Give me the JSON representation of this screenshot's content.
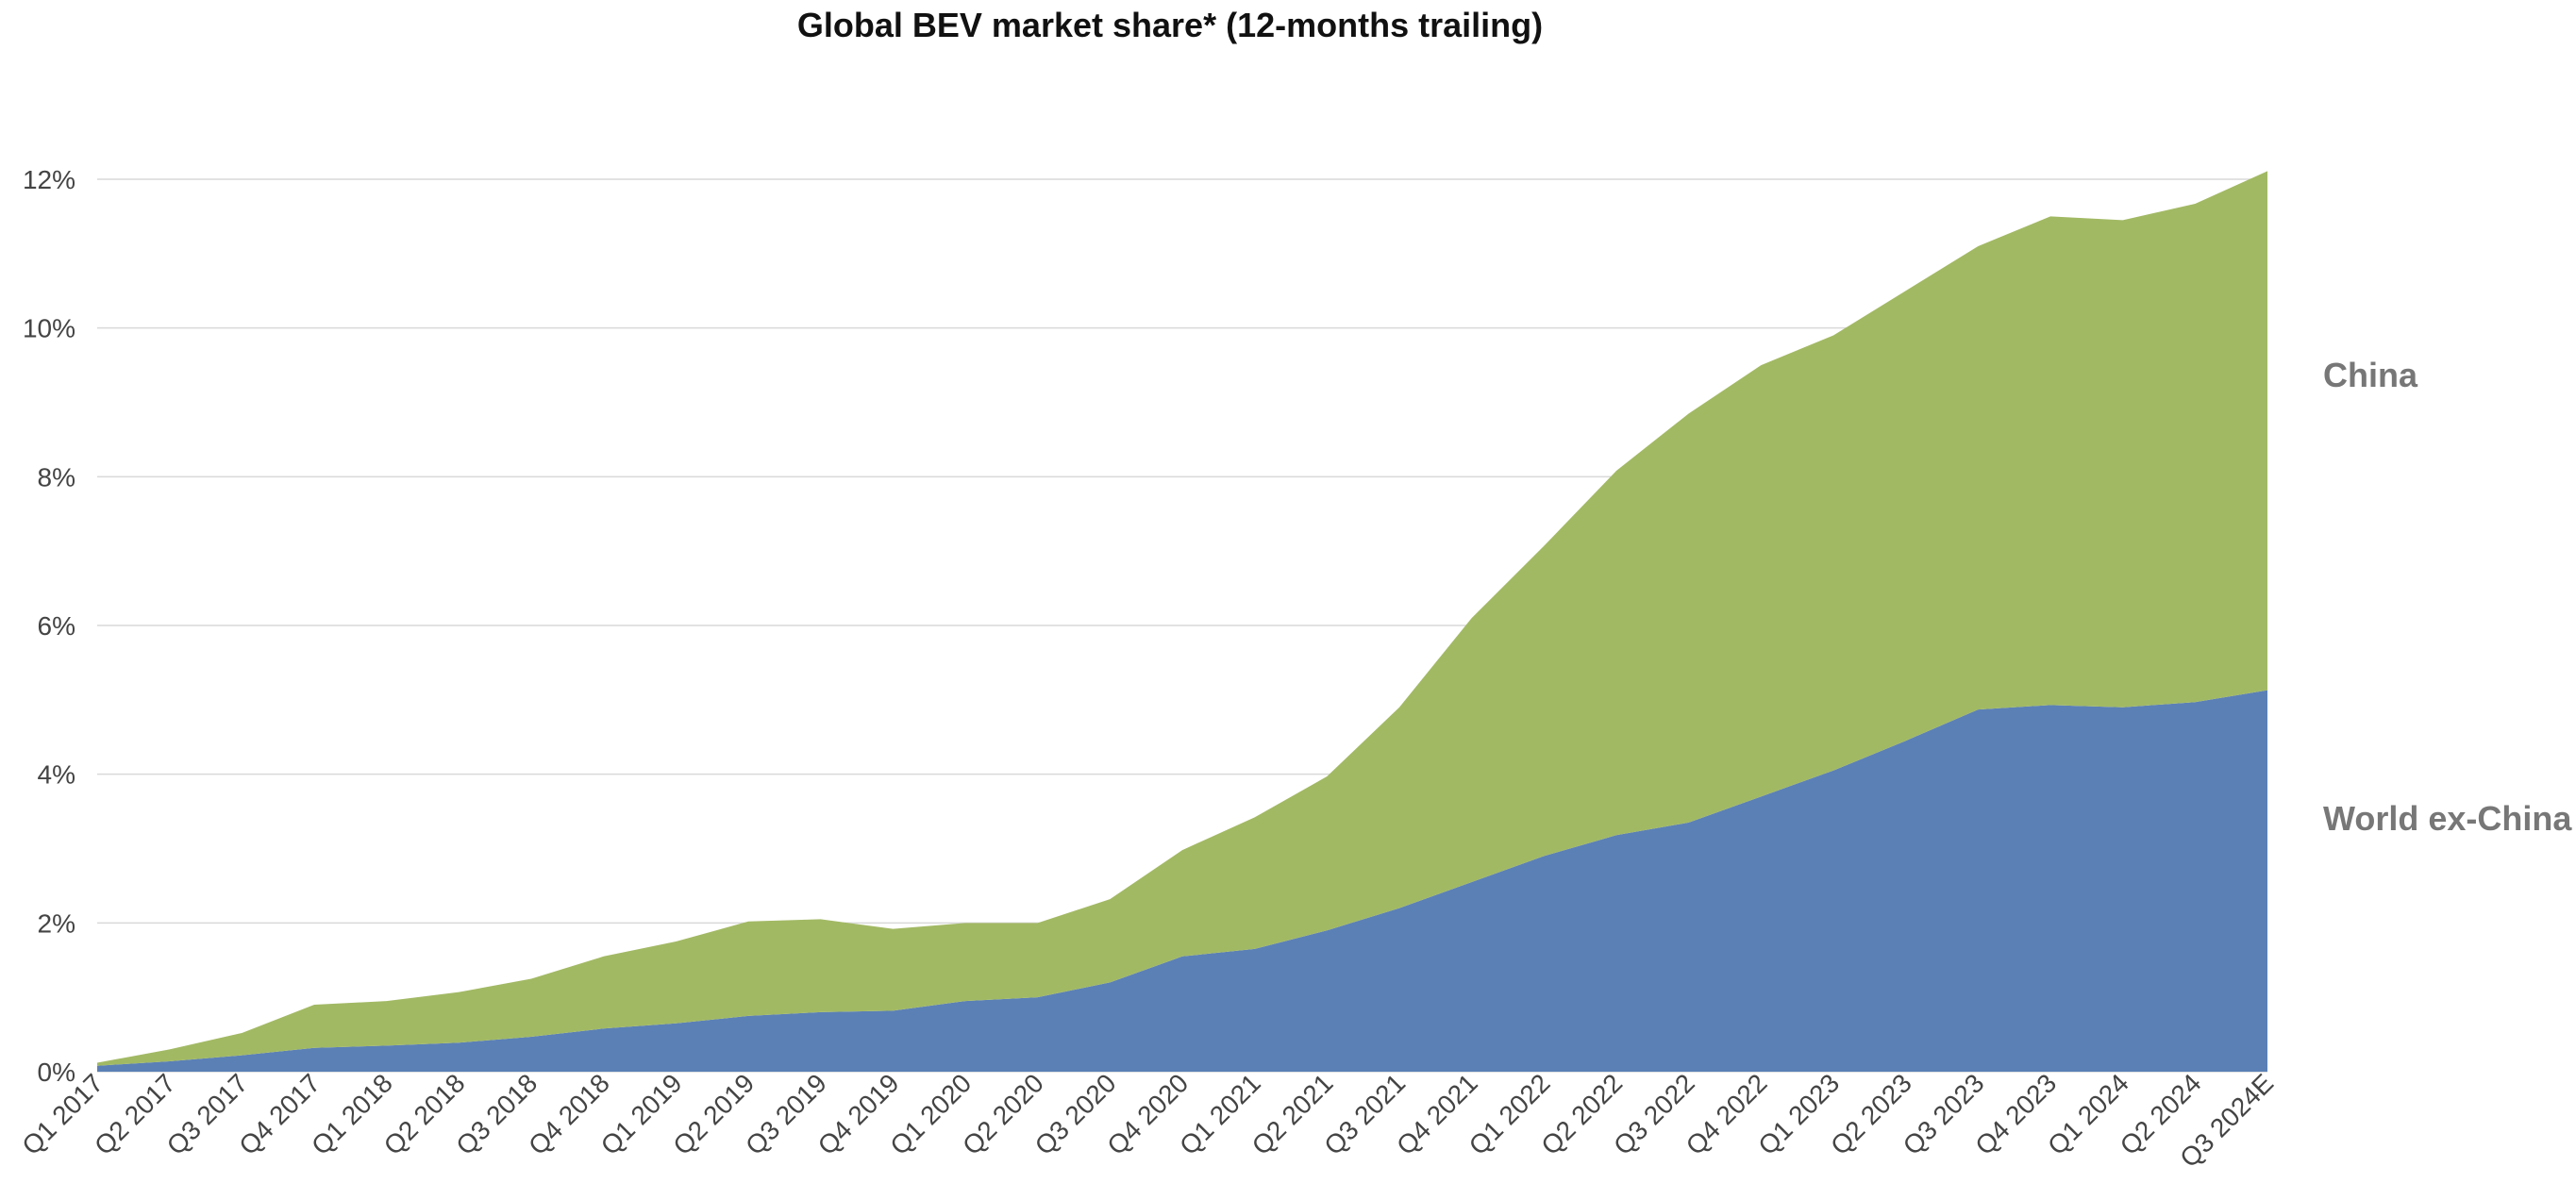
{
  "chart_data": {
    "type": "area",
    "stacked": true,
    "title": "Global BEV market share* (12-months trailing)",
    "xlabel": "",
    "ylabel": "",
    "categories": [
      "Q1 2017",
      "Q2 2017",
      "Q3 2017",
      "Q4 2017",
      "Q1 2018",
      "Q2 2018",
      "Q3 2018",
      "Q4 2018",
      "Q1 2019",
      "Q2 2019",
      "Q3 2019",
      "Q4 2019",
      "Q1 2020",
      "Q2 2020",
      "Q3 2020",
      "Q4 2020",
      "Q1 2021",
      "Q2 2021",
      "Q3 2021",
      "Q4 2021",
      "Q1 2022",
      "Q2 2022",
      "Q3 2022",
      "Q4 2022",
      "Q1 2023",
      "Q2 2023",
      "Q3 2023",
      "Q4 2023",
      "Q1 2024",
      "Q2 2024",
      "Q3 2024E"
    ],
    "series": [
      {
        "name": "World ex-China",
        "color": "#5b80b6",
        "values": [
          0.08,
          0.14,
          0.22,
          0.32,
          0.35,
          0.39,
          0.47,
          0.58,
          0.65,
          0.75,
          0.8,
          0.82,
          0.95,
          1.0,
          1.2,
          1.55,
          1.65,
          1.9,
          2.2,
          2.55,
          2.9,
          3.18,
          3.35,
          3.7,
          4.05,
          4.45,
          4.87,
          4.93,
          4.9,
          4.97,
          5.13
        ]
      },
      {
        "name": "China",
        "color": "#a2b964",
        "values": [
          0.04,
          0.16,
          0.3,
          0.58,
          0.6,
          0.68,
          0.78,
          0.97,
          1.1,
          1.27,
          1.25,
          1.1,
          1.05,
          1.0,
          1.12,
          1.43,
          1.77,
          2.07,
          2.7,
          3.55,
          4.17,
          4.9,
          5.5,
          5.8,
          5.85,
          6.05,
          6.23,
          6.57,
          6.55,
          6.7,
          6.98
        ]
      }
    ],
    "ylim": [
      0,
      12
    ],
    "yticks": [
      0,
      2,
      4,
      6,
      8,
      10,
      12
    ],
    "ytick_labels": [
      "0%",
      "2%",
      "4%",
      "6%",
      "8%",
      "10%",
      "12%"
    ],
    "grid": true,
    "legend": "right, labels beside areas"
  }
}
